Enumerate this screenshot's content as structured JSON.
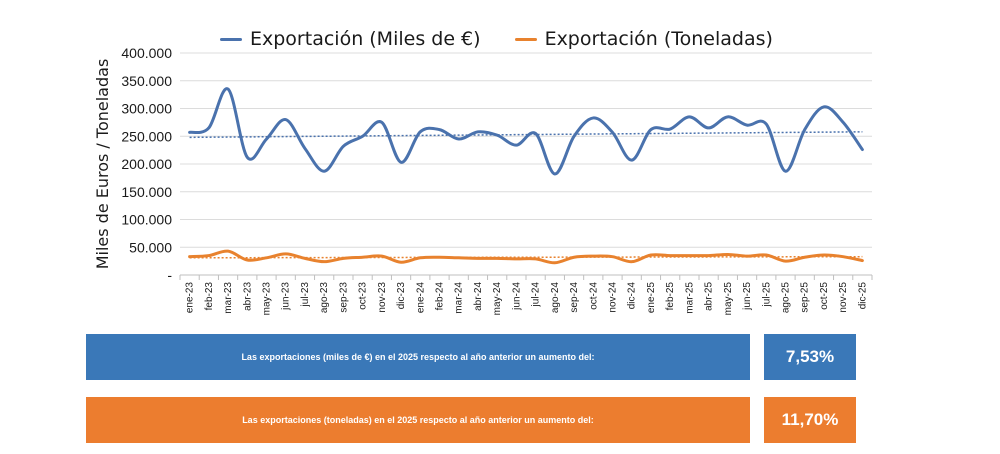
{
  "chart_data": {
    "type": "line",
    "title": "",
    "xlabel": "",
    "ylabel": "Miles de Euros / Toneladas",
    "ylim": [
      0,
      400000
    ],
    "yticks": [
      "-",
      "50.000",
      "100.000",
      "150.000",
      "200.000",
      "250.000",
      "300.000",
      "350.000",
      "400.000"
    ],
    "categories": [
      "ene-23",
      "feb-23",
      "mar-23",
      "abr-23",
      "may-23",
      "jun-23",
      "jul-23",
      "ago-23",
      "sep-23",
      "oct-23",
      "nov-23",
      "dic-23",
      "ene-24",
      "feb-24",
      "mar-24",
      "abr-24",
      "may-24",
      "jun-24",
      "jul-24",
      "ago-24",
      "sep-24",
      "oct-24",
      "nov-24",
      "dic-24",
      "ene-25",
      "feb-25",
      "mar-25",
      "abr-25",
      "may-25",
      "jun-25",
      "jul-25",
      "ago-25",
      "sep-25",
      "oct-25",
      "nov-25",
      "dic-25"
    ],
    "series": [
      {
        "name": "Exportación (Miles de €)",
        "color": "#4a72ad",
        "values": [
          257000,
          265000,
          335000,
          212000,
          245000,
          280000,
          228000,
          187000,
          232000,
          250000,
          275000,
          203000,
          258000,
          262000,
          245000,
          258000,
          252000,
          234000,
          255000,
          182000,
          250000,
          283000,
          257000,
          207000,
          262000,
          263000,
          285000,
          265000,
          285000,
          270000,
          272000,
          187000,
          262000,
          303000,
          275000,
          226000
        ],
        "trend": [
          248000,
          258000
        ]
      },
      {
        "name": "Exportación (Toneladas)",
        "color": "#e8822e",
        "values": [
          33000,
          35000,
          43000,
          27000,
          31000,
          38000,
          30000,
          24000,
          30000,
          32000,
          34000,
          23000,
          31000,
          32000,
          31000,
          30000,
          30000,
          29000,
          29000,
          22000,
          32000,
          34000,
          33000,
          24000,
          36000,
          35000,
          35000,
          35000,
          37000,
          34000,
          36000,
          25000,
          32000,
          36000,
          33000,
          26000
        ],
        "trend": [
          31000,
          33000
        ]
      }
    ]
  },
  "legend": {
    "eur_label": "Exportación (Miles de €)",
    "ton_label": "Exportación (Toneladas)"
  },
  "summary": {
    "eur_text": "Las exportaciones (miles de €) en el 2025 respecto al año anterior un aumento del:",
    "eur_value": "7,53%",
    "eur_color": "#3a78b8",
    "ton_text": "Las exportaciones (toneladas) en el 2025 respecto al año anterior un aumento del:",
    "ton_value": "11,70%",
    "ton_color": "#ec7d2f"
  }
}
